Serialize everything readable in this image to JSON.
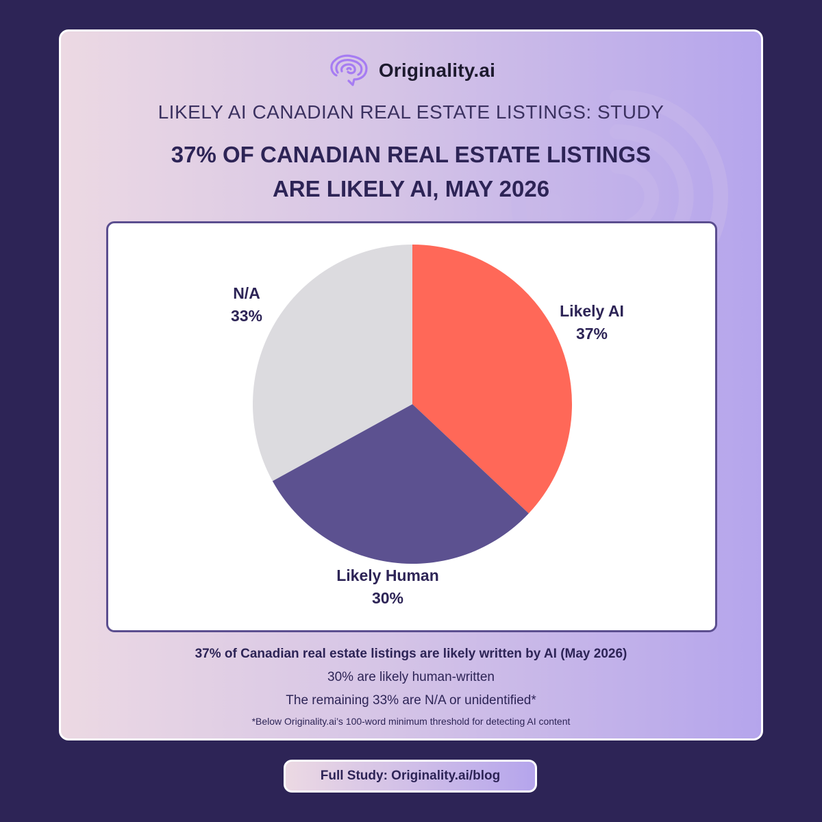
{
  "brand": {
    "name": "Originality.ai",
    "logo_icon": "brain-icon"
  },
  "kicker": "LIKELY AI CANADIAN REAL ESTATE LISTINGS: STUDY",
  "headline": {
    "line1": "37% OF CANADIAN REAL ESTATE LISTINGS",
    "line2": "ARE LIKELY AI, MAY 2026"
  },
  "chart_data": {
    "type": "pie",
    "slices": [
      {
        "label": "Likely AI",
        "value": 37,
        "value_label": "37%",
        "color": "#ff6858"
      },
      {
        "label": "Likely Human",
        "value": 30,
        "value_label": "30%",
        "color": "#5c5190"
      },
      {
        "label": "N/A",
        "value": 33,
        "value_label": "33%",
        "color": "#dcdbdf"
      }
    ]
  },
  "summary": {
    "line1": "37% of Canadian real estate listings are likely written by AI (May 2026)",
    "line2": "30% are likely human-written",
    "line3": "The remaining 33% are N/A or unidentified*",
    "footnote": "*Below Originality.ai’s 100-word minimum threshold for detecting AI content"
  },
  "cta": {
    "label": "Full Study: Originality.ai/blog"
  },
  "colors": {
    "background": "#2d2456",
    "accent": "#ff6858",
    "brand_purple": "#5c5190",
    "text": "#2d2456"
  }
}
